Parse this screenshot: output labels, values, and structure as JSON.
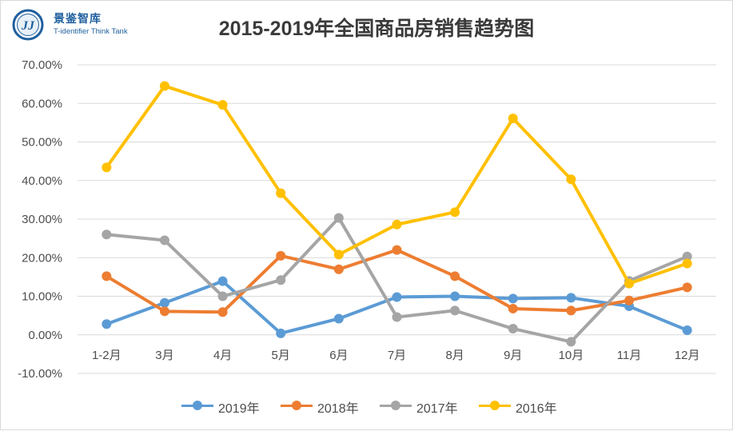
{
  "brand": {
    "logo_mark": "JJ",
    "name_cn": "景鉴智库",
    "name_en": "T-identifier Think Tank"
  },
  "chart_data": {
    "type": "line",
    "title": "2015-2019年全国商品房销售趋势图",
    "xlabel": "",
    "ylabel": "",
    "categories": [
      "1-2月",
      "3月",
      "4月",
      "5月",
      "6月",
      "7月",
      "8月",
      "9月",
      "10月",
      "11月",
      "12月"
    ],
    "ylim": [
      -10,
      70
    ],
    "yticks": [
      "-10.00%",
      "0.00%",
      "10.00%",
      "20.00%",
      "30.00%",
      "40.00%",
      "50.00%",
      "60.00%",
      "70.00%"
    ],
    "grid": true,
    "legend_position": "bottom",
    "series": [
      {
        "name": "2019年",
        "color": "#5b9bd5",
        "values": [
          2.8,
          8.3,
          13.9,
          0.4,
          4.2,
          9.8,
          10.0,
          9.4,
          9.6,
          7.4,
          1.2
        ]
      },
      {
        "name": "2018年",
        "color": "#ed7d31",
        "values": [
          15.2,
          6.1,
          5.9,
          20.5,
          17.0,
          22.0,
          15.2,
          6.8,
          6.3,
          8.9,
          12.3
        ]
      },
      {
        "name": "2017年",
        "color": "#a5a5a5",
        "values": [
          26.0,
          24.5,
          10.0,
          14.2,
          30.3,
          4.6,
          6.3,
          1.6,
          -1.8,
          14.0,
          20.3
        ]
      },
      {
        "name": "2016年",
        "color": "#ffc000",
        "values": [
          43.4,
          64.5,
          59.6,
          36.7,
          20.8,
          28.6,
          31.8,
          56.1,
          40.3,
          13.3,
          18.5
        ]
      }
    ]
  }
}
